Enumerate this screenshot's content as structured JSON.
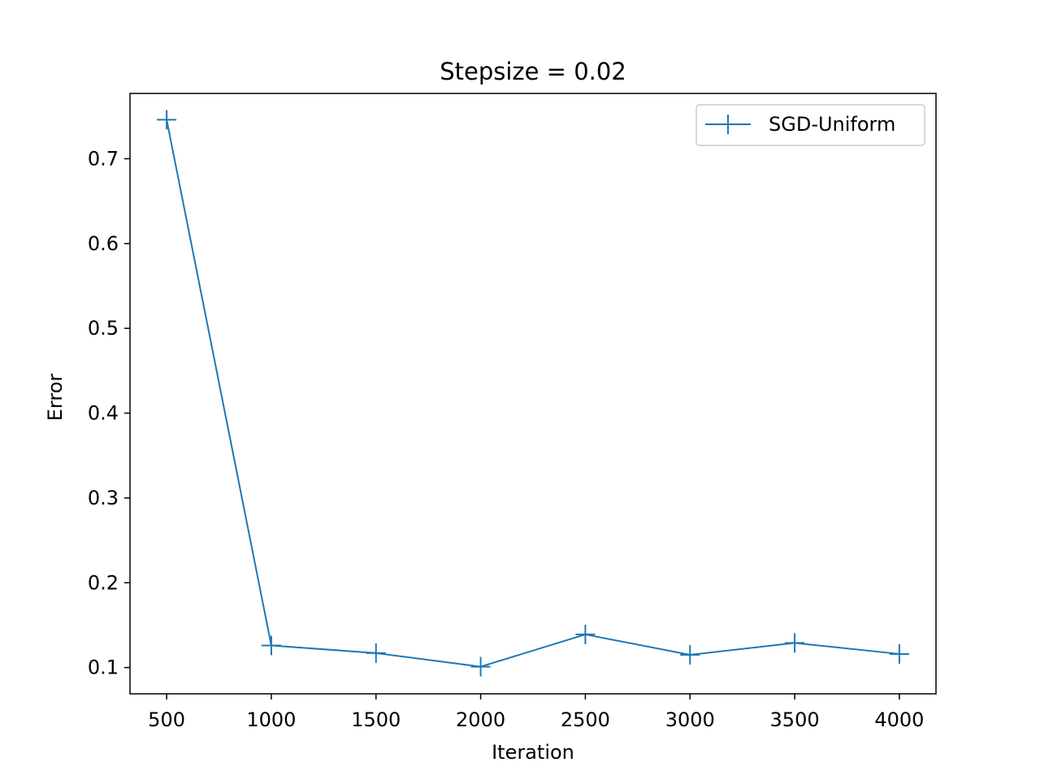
{
  "chart_data": {
    "type": "line",
    "title": "Stepsize = 0.02",
    "xlabel": "Iteration",
    "ylabel": "Error",
    "xlim": [
      325,
      4175
    ],
    "ylim": [
      0.069,
      0.777
    ],
    "xticks": [
      500,
      1000,
      1500,
      2000,
      2500,
      3000,
      3500,
      4000
    ],
    "xtick_labels": [
      "500",
      "1000",
      "1500",
      "2000",
      "2500",
      "3000",
      "3500",
      "4000"
    ],
    "yticks": [
      0.1,
      0.2,
      0.3,
      0.4,
      0.5,
      0.6,
      0.7
    ],
    "ytick_labels": [
      "0.1",
      "0.2",
      "0.3",
      "0.4",
      "0.5",
      "0.6",
      "0.7"
    ],
    "grid": false,
    "legend_position": "top-right",
    "series": [
      {
        "name": "SGD-Uniform",
        "color": "#1f77b4",
        "marker": "plus",
        "x": [
          500,
          1000,
          1500,
          2000,
          2500,
          3000,
          3500,
          4000
        ],
        "y": [
          0.746,
          0.126,
          0.117,
          0.101,
          0.139,
          0.115,
          0.129,
          0.116
        ]
      }
    ]
  }
}
